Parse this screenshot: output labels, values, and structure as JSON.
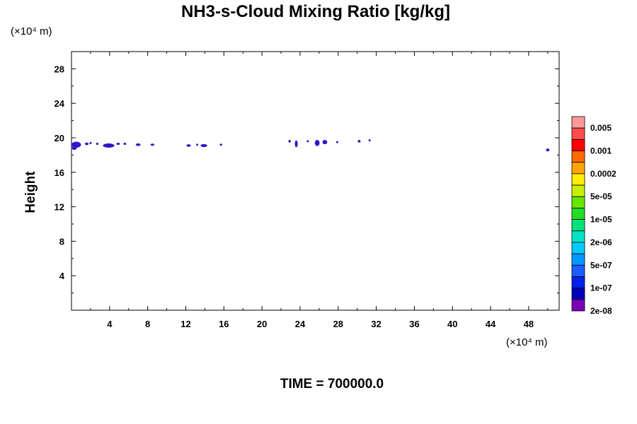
{
  "chart_data": {
    "type": "heatmap",
    "title": "NH3-s-Cloud Mixing Ratio [kg/kg]",
    "ylabel": "Height",
    "xlabel": "",
    "x_unit": "(×10⁴ m)",
    "y_unit": "(×10⁴ m)",
    "footer": "TIME = 700000.0",
    "xlim": [
      0,
      51.2
    ],
    "ylim": [
      0,
      30
    ],
    "x_ticks": [
      4,
      8,
      12,
      16,
      20,
      24,
      28,
      32,
      36,
      40,
      44,
      48
    ],
    "y_ticks": [
      4,
      8,
      12,
      16,
      20,
      24,
      28
    ],
    "colorbar": {
      "labels": [
        "0.005",
        "0.001",
        "0.0002",
        "5e-05",
        "1e-05",
        "2e-06",
        "5e-07",
        "1e-07",
        "2e-08"
      ],
      "colors": [
        "#ff9999",
        "#ff4d4d",
        "#ff0000",
        "#ff6a00",
        "#ffa500",
        "#ffee00",
        "#c8f000",
        "#66e600",
        "#22dd22",
        "#00e47a",
        "#00e4c8",
        "#00ccff",
        "#0099ff",
        "#1a5cff",
        "#0022ee",
        "#0000bb",
        "#7a00b5"
      ]
    },
    "blobs": [
      {
        "x": 0.5,
        "y": 19.2,
        "w": 1.0,
        "h": 0.7
      },
      {
        "x": 0.3,
        "y": 18.8,
        "w": 0.5,
        "h": 0.4
      },
      {
        "x": 1.6,
        "y": 19.3,
        "w": 0.4,
        "h": 0.3
      },
      {
        "x": 2.0,
        "y": 19.4,
        "w": 0.2,
        "h": 0.2
      },
      {
        "x": 2.7,
        "y": 19.3,
        "w": 0.25,
        "h": 0.2
      },
      {
        "x": 3.9,
        "y": 19.1,
        "w": 1.2,
        "h": 0.5
      },
      {
        "x": 4.9,
        "y": 19.3,
        "w": 0.35,
        "h": 0.25
      },
      {
        "x": 5.6,
        "y": 19.3,
        "w": 0.3,
        "h": 0.25
      },
      {
        "x": 7.0,
        "y": 19.2,
        "w": 0.5,
        "h": 0.3
      },
      {
        "x": 8.5,
        "y": 19.2,
        "w": 0.4,
        "h": 0.25
      },
      {
        "x": 12.3,
        "y": 19.1,
        "w": 0.45,
        "h": 0.3
      },
      {
        "x": 13.2,
        "y": 19.2,
        "w": 0.2,
        "h": 0.2
      },
      {
        "x": 13.9,
        "y": 19.1,
        "w": 0.7,
        "h": 0.35
      },
      {
        "x": 15.7,
        "y": 19.2,
        "w": 0.25,
        "h": 0.2
      },
      {
        "x": 22.9,
        "y": 19.6,
        "w": 0.25,
        "h": 0.3
      },
      {
        "x": 23.6,
        "y": 19.3,
        "w": 0.3,
        "h": 0.8
      },
      {
        "x": 24.8,
        "y": 19.6,
        "w": 0.2,
        "h": 0.2
      },
      {
        "x": 25.8,
        "y": 19.4,
        "w": 0.5,
        "h": 0.7
      },
      {
        "x": 26.6,
        "y": 19.5,
        "w": 0.5,
        "h": 0.5
      },
      {
        "x": 27.9,
        "y": 19.5,
        "w": 0.2,
        "h": 0.2
      },
      {
        "x": 30.2,
        "y": 19.6,
        "w": 0.3,
        "h": 0.3
      },
      {
        "x": 31.3,
        "y": 19.7,
        "w": 0.2,
        "h": 0.15
      },
      {
        "x": 50.0,
        "y": 18.6,
        "w": 0.35,
        "h": 0.35
      }
    ],
    "blob_color": "#3414c8"
  }
}
